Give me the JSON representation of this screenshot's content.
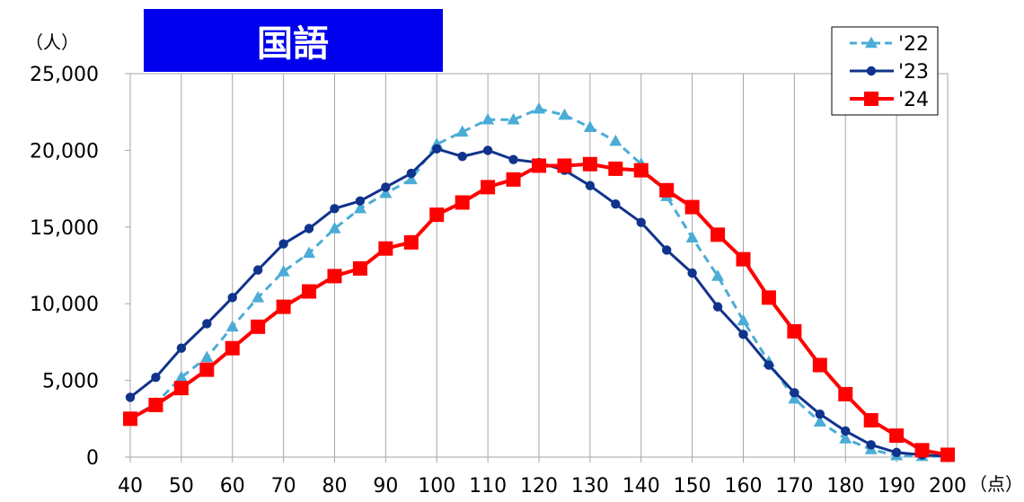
{
  "chart_data": {
    "type": "line",
    "title": "国語",
    "ylabel": "（人）",
    "xlabel": "（点）",
    "ylim": [
      0,
      25000
    ],
    "yticks": [
      0,
      5000,
      10000,
      15000,
      20000,
      25000
    ],
    "ytick_labels": [
      "0",
      "5,000",
      "10,000",
      "15,000",
      "20,000",
      "25,000"
    ],
    "xlim": [
      40,
      200
    ],
    "xticks": [
      40,
      50,
      60,
      70,
      80,
      90,
      100,
      110,
      120,
      130,
      140,
      150,
      160,
      170,
      180,
      190,
      200
    ],
    "xtick_labels": [
      "40",
      "50",
      "60",
      "70",
      "80",
      "90",
      "100",
      "110",
      "120",
      "130",
      "140",
      "150",
      "160",
      "170",
      "180",
      "190",
      "200"
    ],
    "grid": "vertical",
    "legend_position": "top-right",
    "x": [
      40,
      45,
      50,
      55,
      60,
      65,
      70,
      75,
      80,
      85,
      90,
      95,
      100,
      105,
      110,
      115,
      120,
      125,
      130,
      135,
      140,
      145,
      150,
      155,
      160,
      165,
      170,
      175,
      180,
      185,
      190,
      195,
      200
    ],
    "series": [
      {
        "name": "'22",
        "color": "#4bacd6",
        "line_style": "dashed",
        "marker": "triangle",
        "values": [
          2500,
          3500,
          5200,
          6500,
          8500,
          10400,
          12100,
          13300,
          14900,
          16200,
          17200,
          18100,
          20400,
          21200,
          22000,
          22000,
          22700,
          22300,
          21500,
          20600,
          19100,
          17000,
          14300,
          11800,
          8900,
          6200,
          3800,
          2300,
          1200,
          500,
          100,
          50,
          50
        ]
      },
      {
        "name": "'23",
        "color": "#10338c",
        "line_style": "solid",
        "marker": "circle",
        "values": [
          3900,
          5200,
          7100,
          8700,
          10400,
          12200,
          13900,
          14900,
          16200,
          16700,
          17600,
          18500,
          20100,
          19600,
          20000,
          19400,
          19200,
          18700,
          17700,
          16500,
          15300,
          13500,
          12000,
          9800,
          8000,
          6000,
          4200,
          2800,
          1700,
          800,
          300,
          150,
          50
        ]
      },
      {
        "name": "'24",
        "color": "#ff0000",
        "line_style": "solid",
        "marker": "square",
        "values": [
          2500,
          3400,
          4500,
          5700,
          7100,
          8500,
          9800,
          10800,
          11800,
          12300,
          13600,
          14000,
          15800,
          16600,
          17600,
          18100,
          19000,
          19000,
          19100,
          18800,
          18700,
          17400,
          16300,
          14500,
          12900,
          10400,
          8200,
          6000,
          4100,
          2400,
          1400,
          450,
          150
        ]
      }
    ]
  }
}
